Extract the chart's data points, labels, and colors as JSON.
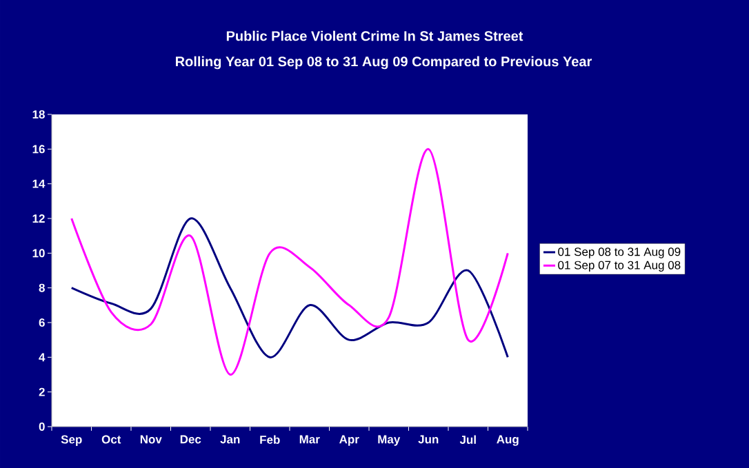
{
  "chart_data": {
    "type": "line",
    "title": "Public Place Violent Crime In St James Street",
    "subtitle": "Rolling Year 01 Sep 08 to 31 Aug 09 Compared to Previous Year",
    "categories": [
      "Sep",
      "Oct",
      "Nov",
      "Dec",
      "Jan",
      "Feb",
      "Mar",
      "Apr",
      "May",
      "Jun",
      "Jul",
      "Aug"
    ],
    "series": [
      {
        "name": "01 Sep 08 to 31 Aug 09",
        "color": "#000080",
        "values": [
          8,
          7.1,
          6.8,
          12,
          8,
          4,
          7,
          5,
          6,
          6,
          9,
          4
        ]
      },
      {
        "name": "01 Sep 07 to 31 Aug 08",
        "color": "#ff00ff",
        "values": [
          12,
          6.6,
          5.9,
          11,
          3,
          10,
          9.2,
          7,
          6.3,
          16,
          5,
          10
        ]
      }
    ],
    "ylim": [
      0,
      18
    ],
    "yticks": [
      0,
      2,
      4,
      6,
      8,
      10,
      12,
      14,
      16,
      18
    ],
    "grid": false,
    "legend": "right",
    "marker": "none",
    "line_style": "solid"
  }
}
